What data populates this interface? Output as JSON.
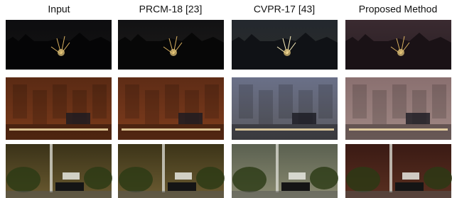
{
  "columns": [
    "Input",
    "PRCM-18 [23]",
    "CVPR-17 [43]",
    "Proposed Method"
  ]
}
